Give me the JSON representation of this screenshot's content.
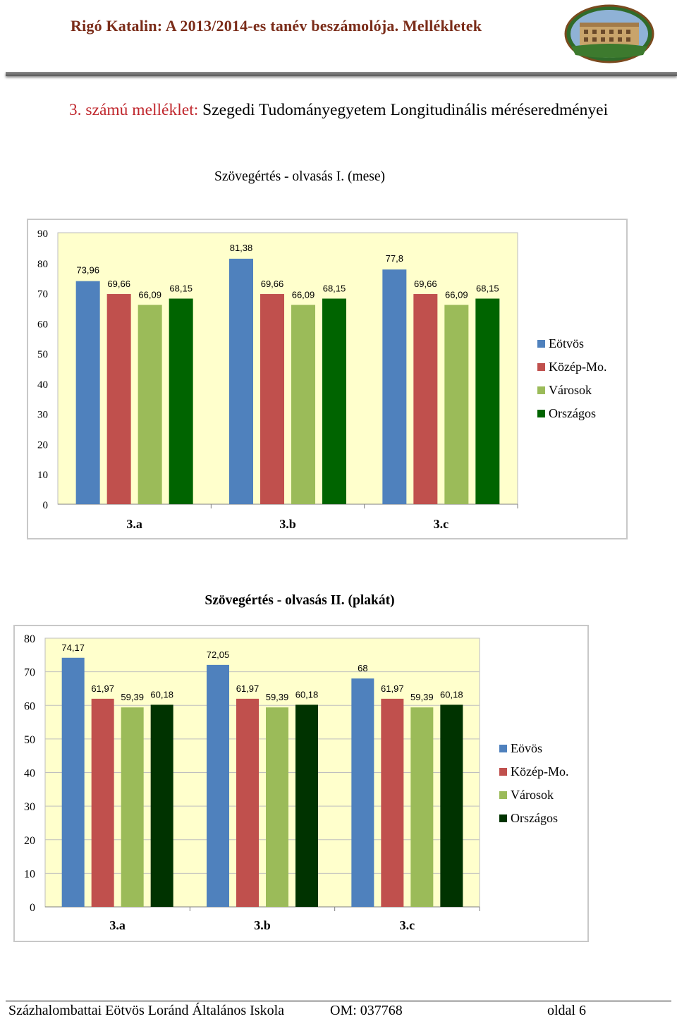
{
  "header": {
    "title": "Rigó Katalin: A 2013/2014-es tanév beszámolója. Mellékletek",
    "logo": "school-building-photo"
  },
  "annex": {
    "number": "3. számú melléklet:",
    "title": "Szegedi Tudományegyetem Longitudinális méréseredményei"
  },
  "colors": {
    "plot_background": "#ffffcc",
    "series": [
      "#4f81bd",
      "#c0504d",
      "#9bbb59",
      "#006400"
    ],
    "series_chart2": [
      "#4f81bd",
      "#c0504d",
      "#9bbb59",
      "#003300"
    ]
  },
  "chart_data": [
    {
      "type": "bar",
      "title": "Szövegértés - olvasás I.  (mese)",
      "categories": [
        "3.a",
        "3.b",
        "3.c"
      ],
      "series": [
        {
          "name": "Eötvös",
          "values": [
            73.96,
            81.38,
            77.8
          ],
          "labels": [
            "73,96",
            "81,38",
            "77,8"
          ]
        },
        {
          "name": "Közép-Mo.",
          "values": [
            69.66,
            69.66,
            69.66
          ],
          "labels": [
            "69,66",
            "69,66",
            "69,66"
          ]
        },
        {
          "name": "Városok",
          "values": [
            66.09,
            66.09,
            66.09
          ],
          "labels": [
            "66,09",
            "66,09",
            "66,09"
          ]
        },
        {
          "name": "Országos",
          "values": [
            68.15,
            68.15,
            68.15
          ],
          "labels": [
            "68,15",
            "68,15",
            "68,15"
          ]
        }
      ],
      "y_ticks": [
        "0",
        "10",
        "20",
        "30",
        "40",
        "50",
        "60",
        "70",
        "80",
        "90"
      ],
      "ylim": [
        0,
        90
      ],
      "grid": false,
      "legend": "right"
    },
    {
      "type": "bar",
      "title": "Szövegértés - olvasás II. (plakát)",
      "categories": [
        "3.a",
        "3.b",
        "3.c"
      ],
      "series": [
        {
          "name": "Eövös",
          "values": [
            74.17,
            72.05,
            68
          ],
          "labels": [
            "74,17",
            "72,05",
            "68"
          ]
        },
        {
          "name": "Közép-Mo.",
          "values": [
            61.97,
            61.97,
            61.97
          ],
          "labels": [
            "61,97",
            "61,97",
            "61,97"
          ]
        },
        {
          "name": "Városok",
          "values": [
            59.39,
            59.39,
            59.39
          ],
          "labels": [
            "59,39",
            "59,39",
            "59,39"
          ]
        },
        {
          "name": "Országos",
          "values": [
            60.18,
            60.18,
            60.18
          ],
          "labels": [
            "60,18",
            "60,18",
            "60,18"
          ]
        }
      ],
      "y_ticks": [
        "0",
        "10",
        "20",
        "30",
        "40",
        "50",
        "60",
        "70",
        "80"
      ],
      "ylim": [
        0,
        80
      ],
      "grid": true,
      "legend": "right"
    }
  ],
  "footer": {
    "school": "Százhalombattai Eötvös Loránd Általános Iskola",
    "om": "OM: 037768",
    "page": "oldal 6"
  }
}
